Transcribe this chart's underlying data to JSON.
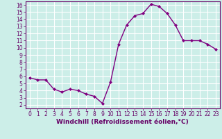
{
  "x": [
    0,
    1,
    2,
    3,
    4,
    5,
    6,
    7,
    8,
    9,
    10,
    11,
    12,
    13,
    14,
    15,
    16,
    17,
    18,
    19,
    20,
    21,
    22,
    23
  ],
  "y": [
    5.8,
    5.5,
    5.5,
    4.2,
    3.8,
    4.2,
    4.0,
    3.5,
    3.2,
    2.2,
    5.2,
    10.5,
    13.2,
    14.5,
    14.8,
    16.1,
    15.8,
    14.8,
    13.2,
    11.0,
    11.0,
    11.0,
    10.5,
    9.8
  ],
  "line_color": "#800080",
  "marker": "D",
  "marker_size": 2,
  "bg_color": "#cceee8",
  "grid_color": "#ffffff",
  "xlabel": "Windchill (Refroidissement éolien,°C)",
  "xlim": [
    -0.5,
    23.5
  ],
  "ylim": [
    1.5,
    16.5
  ],
  "yticks": [
    2,
    3,
    4,
    5,
    6,
    7,
    8,
    9,
    10,
    11,
    12,
    13,
    14,
    15,
    16
  ],
  "xticks": [
    0,
    1,
    2,
    3,
    4,
    5,
    6,
    7,
    8,
    9,
    10,
    11,
    12,
    13,
    14,
    15,
    16,
    17,
    18,
    19,
    20,
    21,
    22,
    23
  ],
  "tick_label_size": 5.5,
  "xlabel_size": 6.5,
  "line_width": 1.0,
  "tick_color": "#660066",
  "spine_color": "#660066"
}
